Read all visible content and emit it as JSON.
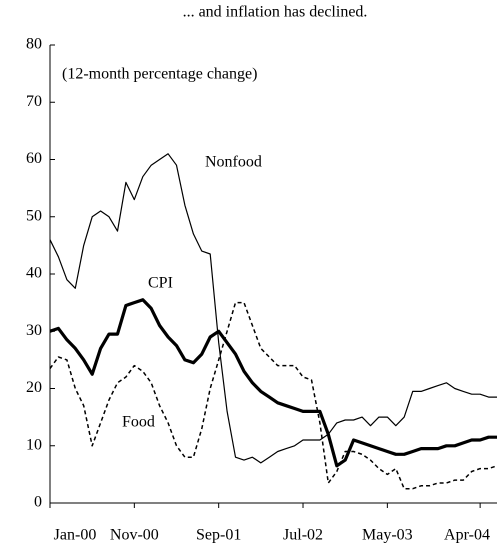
{
  "chart_data": {
    "type": "line",
    "title": "... and inflation has declined.",
    "annotation": "(12-month percentage change)",
    "categories": [
      "Jan-00",
      null,
      null,
      null,
      null,
      null,
      null,
      null,
      null,
      null,
      "Nov-00",
      null,
      null,
      null,
      null,
      null,
      null,
      null,
      null,
      null,
      "Sep-01",
      null,
      null,
      null,
      null,
      null,
      null,
      null,
      null,
      null,
      "Jul-02",
      null,
      null,
      null,
      null,
      null,
      null,
      null,
      null,
      null,
      "May-03",
      null,
      null,
      null,
      null,
      null,
      null,
      null,
      null,
      null,
      null,
      "Apr-04",
      null,
      null
    ],
    "series": [
      {
        "name": "Nonfood",
        "color": "#000000",
        "style": "thin",
        "values": [
          46,
          43,
          39,
          37.5,
          45,
          50,
          51,
          50,
          47.5,
          56,
          53,
          57,
          59,
          60,
          61,
          59,
          52,
          47,
          44,
          43.5,
          28,
          16,
          8,
          7.5,
          8,
          7,
          8,
          9,
          9.5,
          10,
          11,
          11,
          11,
          12,
          14,
          14.5,
          14.5,
          15,
          13.5,
          15,
          15,
          13.5,
          15,
          19.5,
          19.5,
          20,
          20.5,
          21,
          20,
          19.5,
          19,
          19,
          18.5,
          18.5
        ]
      },
      {
        "name": "CPI",
        "color": "#000000",
        "style": "thick",
        "values": [
          30,
          30.5,
          28.5,
          27,
          25,
          22.5,
          27,
          29.5,
          29.5,
          34.5,
          35,
          35.5,
          34,
          31,
          29,
          27.5,
          25,
          24.5,
          26,
          29,
          30,
          28,
          26,
          23,
          21,
          19.5,
          18.5,
          17.5,
          17,
          16.5,
          16,
          16,
          16,
          12,
          6.5,
          7.5,
          11,
          10.5,
          10,
          9.5,
          9,
          8.5,
          8.5,
          9,
          9.5,
          9.5,
          9.5,
          10,
          10,
          10.5,
          11,
          11,
          11.5,
          11.5
        ]
      },
      {
        "name": "Food",
        "color": "#000000",
        "style": "dashed",
        "values": [
          23.5,
          25.5,
          25,
          20,
          17,
          10,
          14,
          18,
          21,
          22,
          24,
          23,
          21,
          17,
          14,
          10,
          8,
          8,
          13,
          20,
          25,
          30,
          35,
          35,
          31,
          27,
          25.5,
          24,
          24,
          24,
          22,
          21.5,
          14,
          3.5,
          5.5,
          9,
          9,
          8.5,
          7.5,
          6,
          5,
          6,
          2.5,
          2.5,
          3,
          3,
          3.5,
          3.5,
          4,
          4,
          5.5,
          6,
          6,
          6.5
        ]
      }
    ],
    "ylim": [
      0,
      80
    ],
    "yticks": [
      0,
      10,
      20,
      30,
      40,
      50,
      60,
      70,
      80
    ],
    "grid": false
  }
}
